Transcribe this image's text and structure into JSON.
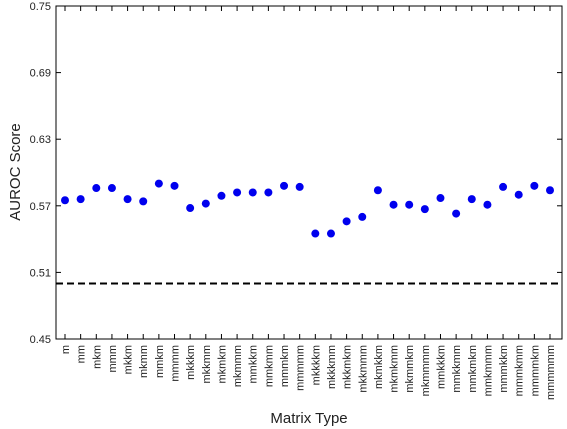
{
  "chart_data": {
    "type": "scatter",
    "title": "",
    "xlabel": "Matrix Type",
    "ylabel": "AUROC Score",
    "ylim": [
      0.45,
      0.75
    ],
    "yticks": [
      "0.45",
      "0.51",
      "0.57",
      "0.63",
      "0.69",
      "0.75"
    ],
    "grid": false,
    "marker_color": "#0000ee",
    "reference_line": {
      "y": 0.5,
      "style": "dashed",
      "color": "#000000"
    },
    "categories": [
      "m",
      "mm",
      "mkm",
      "mmm",
      "mkkm",
      "mkmm",
      "mmkm",
      "mmmm",
      "mkkkm",
      "mkkmm",
      "mkmkm",
      "mkmmm",
      "mmkkm",
      "mmkmm",
      "mmmkm",
      "mmmmm",
      "mkkkkm",
      "mkkkmm",
      "mkkmkm",
      "mkkmmm",
      "mkmkkm",
      "mkmkmm",
      "mkmmkm",
      "mkmmmm",
      "mmkkkm",
      "mmkkmm",
      "mmkmkm",
      "mmkmmm",
      "mmmkkm",
      "mmmkmm",
      "mmmmkm",
      "mmmmmm"
    ],
    "values": [
      0.575,
      0.576,
      0.586,
      0.586,
      0.576,
      0.574,
      0.59,
      0.588,
      0.568,
      0.572,
      0.579,
      0.582,
      0.582,
      0.582,
      0.588,
      0.587,
      0.545,
      0.545,
      0.556,
      0.56,
      0.584,
      0.571,
      0.571,
      0.567,
      0.577,
      0.563,
      0.576,
      0.571,
      0.587,
      0.58,
      0.588,
      0.584
    ]
  }
}
